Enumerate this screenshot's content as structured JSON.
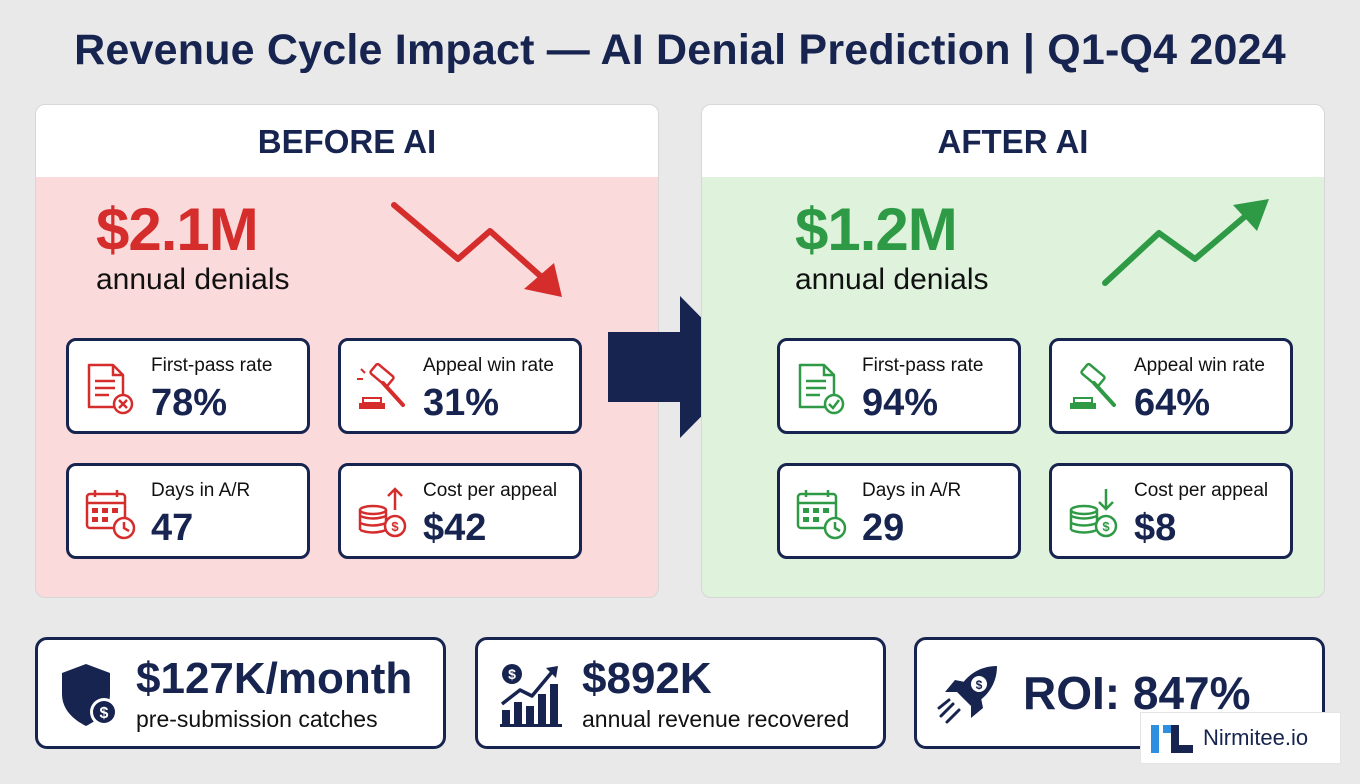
{
  "title": "Revenue Cycle Impact — AI Denial Prediction | Q1-Q4 2024",
  "before": {
    "heading": "BEFORE AI",
    "amount": "$2.1M",
    "amount_label": "annual denials",
    "trend_icon": "trend-down-arrow-icon",
    "accent": "#d52c2c",
    "metrics": [
      {
        "label": "First-pass rate",
        "value": "78%",
        "icon": "document-x-icon"
      },
      {
        "label": "Appeal win rate",
        "value": "31%",
        "icon": "gavel-icon"
      },
      {
        "label": "Days in A/R",
        "value": "47",
        "icon": "calendar-clock-icon"
      },
      {
        "label": "Cost per appeal",
        "value": "$42",
        "icon": "coins-up-icon"
      }
    ]
  },
  "after": {
    "heading": "AFTER AI",
    "amount": "$1.2M",
    "amount_label": "annual denials",
    "trend_icon": "trend-up-arrow-icon",
    "accent": "#2f9a45",
    "metrics": [
      {
        "label": "First-pass rate",
        "value": "94%",
        "icon": "document-check-icon"
      },
      {
        "label": "Appeal win rate",
        "value": "64%",
        "icon": "gavel-icon"
      },
      {
        "label": "Days in A/R",
        "value": "29",
        "icon": "calendar-clock-icon"
      },
      {
        "label": "Cost per appeal",
        "value": "$8",
        "icon": "coins-down-icon"
      }
    ]
  },
  "highlights": [
    {
      "value": "$127K/month",
      "label": "pre-submission catches",
      "icon": "shield-dollar-icon"
    },
    {
      "value": "$892K",
      "label": "annual revenue recovered",
      "icon": "growth-chart-icon"
    },
    {
      "value": "ROI: 847%",
      "label": "",
      "icon": "rocket-icon"
    }
  ],
  "brand": {
    "name": "Nirmitee.io",
    "color": "#16244f",
    "logo_accent": "#2e8ee0"
  }
}
